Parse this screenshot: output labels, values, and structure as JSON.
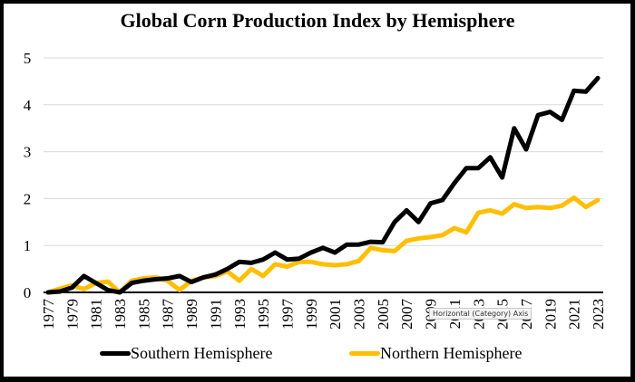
{
  "chart_data": {
    "type": "line",
    "title": "Global Corn Production Index by Hemisphere",
    "xlabel": "",
    "ylabel": "",
    "ylim": [
      0,
      5
    ],
    "yticks": [
      "0",
      "1",
      "2",
      "3",
      "4",
      "5"
    ],
    "grid": true,
    "legend_position": "bottom",
    "x": [
      1977,
      1978,
      1979,
      1980,
      1981,
      1982,
      1983,
      1984,
      1985,
      1986,
      1987,
      1988,
      1989,
      1990,
      1991,
      1992,
      1993,
      1994,
      1995,
      1996,
      1997,
      1998,
      1999,
      2000,
      2001,
      2002,
      2003,
      2004,
      2005,
      2006,
      2007,
      2008,
      2009,
      2010,
      2011,
      2012,
      2013,
      2014,
      2015,
      2016,
      2017,
      2018,
      2019,
      2020,
      2021,
      2022,
      2023
    ],
    "xtick_labels": [
      "1977",
      "1979",
      "1981",
      "1983",
      "1985",
      "1987",
      "1989",
      "1991",
      "1993",
      "1995",
      "1997",
      "1999",
      "2001",
      "2003",
      "2005",
      "2007",
      "2009",
      "2011",
      "2013",
      "2015",
      "2017",
      "2019",
      "2021",
      "2023"
    ],
    "series": [
      {
        "name": "Southern Hemisphere",
        "color": "#000000",
        "values": [
          0,
          0.02,
          0.1,
          0.35,
          0.2,
          0.05,
          0.0,
          0.2,
          0.25,
          0.28,
          0.3,
          0.35,
          0.22,
          0.32,
          0.38,
          0.5,
          0.65,
          0.63,
          0.7,
          0.85,
          0.7,
          0.72,
          0.85,
          0.95,
          0.85,
          1.02,
          1.02,
          1.08,
          1.07,
          1.5,
          1.75,
          1.5,
          1.9,
          1.97,
          2.33,
          2.65,
          2.65,
          2.88,
          2.45,
          3.5,
          3.05,
          3.78,
          3.85,
          3.68,
          4.3,
          4.28,
          4.57
        ]
      },
      {
        "name": "Northern Hemisphere",
        "color": "#FFBF00",
        "values": [
          0,
          0.08,
          0.15,
          0.07,
          0.2,
          0.23,
          0.0,
          0.25,
          0.3,
          0.32,
          0.25,
          0.05,
          0.25,
          0.32,
          0.35,
          0.45,
          0.25,
          0.5,
          0.35,
          0.6,
          0.55,
          0.65,
          0.65,
          0.6,
          0.58,
          0.6,
          0.67,
          0.95,
          0.9,
          0.88,
          1.1,
          1.15,
          1.18,
          1.22,
          1.37,
          1.28,
          1.7,
          1.75,
          1.68,
          1.88,
          1.8,
          1.82,
          1.8,
          1.85,
          2.02,
          1.82,
          1.97
        ]
      }
    ]
  },
  "tooltip": "Horizontal (Category) Axis"
}
